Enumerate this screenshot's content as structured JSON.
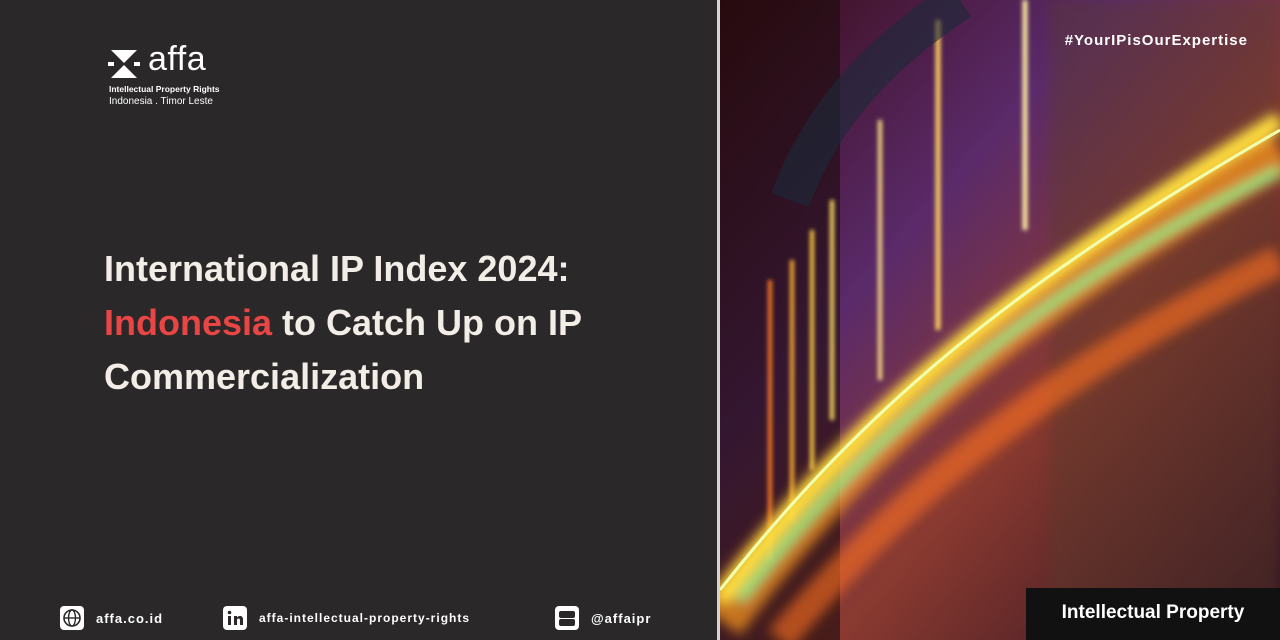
{
  "logo": {
    "wordmark": "affa",
    "tagline": "Intellectual Property Rights",
    "region": "Indonesia . Timor Leste"
  },
  "headline": {
    "line1": "International IP Index 2024:",
    "highlight": "Indonesia",
    "line2_rest": "to Catch Up on IP",
    "line3": "Commercialization"
  },
  "hashtag": "#YourIPisOurExpertise",
  "tag": "Intellectual Property",
  "footer": {
    "website": "affa.co.id",
    "linkedin": "affa-intellectual-property-rights",
    "youtube": "@affaipr"
  }
}
